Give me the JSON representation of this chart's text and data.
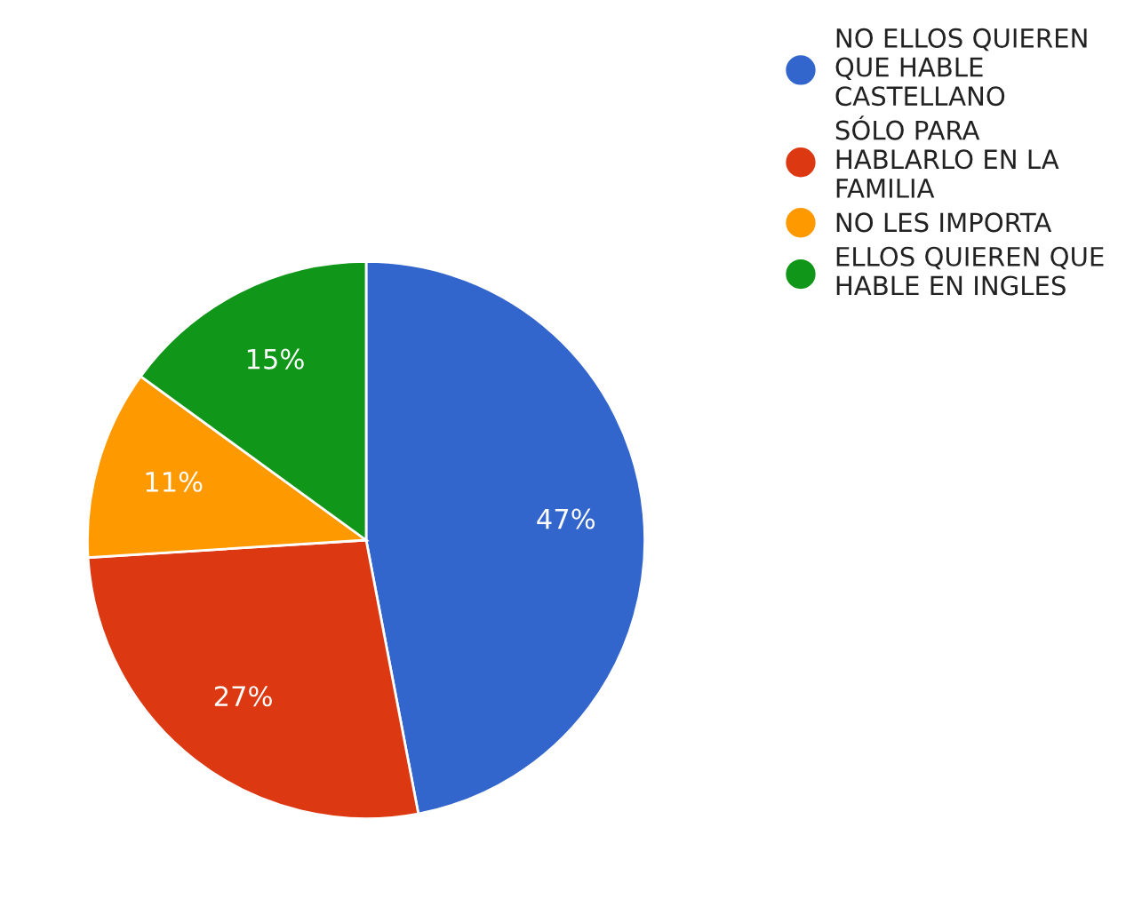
{
  "chart_data": {
    "type": "pie",
    "categories": [
      "NO ELLOS QUIEREN QUE HABLE CASTELLANO",
      "SÓLO PARA HABLARLO EN LA FAMILIA",
      "NO LES IMPORTA",
      "ELLOS QUIEREN QUE HABLE EN INGLES"
    ],
    "values": [
      47,
      27,
      11,
      15
    ],
    "colors": [
      "#3366cc",
      "#dc3912",
      "#ff9900",
      "#109618"
    ],
    "value_labels": [
      "47%",
      "27%",
      "11%",
      "15%"
    ],
    "legend": "top right"
  }
}
